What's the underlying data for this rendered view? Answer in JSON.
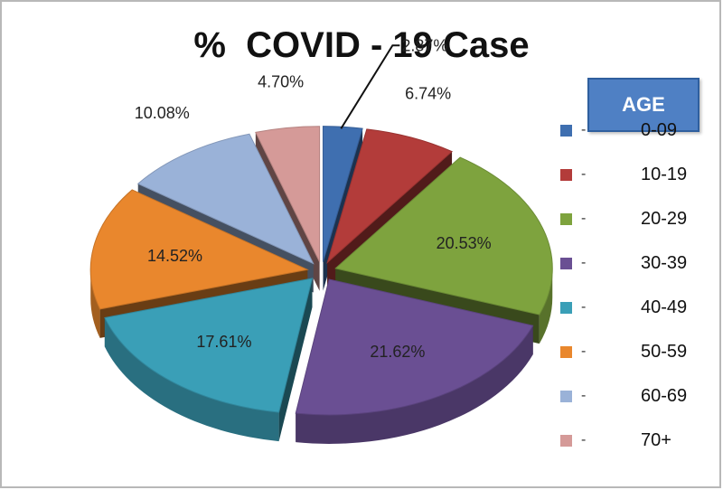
{
  "chart_data": {
    "type": "pie",
    "title": "%  COVID - 19 Case",
    "legend_title": "AGE",
    "legend_position": "right",
    "slices": [
      {
        "name": "0-09",
        "value": 2.87,
        "label": "2.87%",
        "color": "#3f6fb0",
        "legend_label": "0-09"
      },
      {
        "name": "10-19",
        "value": 6.74,
        "label": "6.74%",
        "color": "#b33c3a",
        "legend_label": "10-19"
      },
      {
        "name": "20-29",
        "value": 20.53,
        "label": "20.53%",
        "color": "#7ea33e",
        "legend_label": "20-29"
      },
      {
        "name": "30-39",
        "value": 21.62,
        "label": "21.62%",
        "color": "#6a4f93",
        "legend_label": "30-39"
      },
      {
        "name": "40-49",
        "value": 17.61,
        "label": "17.61%",
        "color": "#3a9fb7",
        "legend_label": "40-49"
      },
      {
        "name": "50-59",
        "value": 14.52,
        "label": "14.52%",
        "color": "#e9872d",
        "legend_label": "50-59"
      },
      {
        "name": "60-69",
        "value": 10.08,
        "label": "10.08%",
        "color": "#9ab2d8",
        "legend_label": "60-69"
      },
      {
        "name": "70+",
        "value": 4.7,
        "label": "4.70%",
        "color": "#d59a98",
        "legend_label": "70+"
      }
    ]
  }
}
